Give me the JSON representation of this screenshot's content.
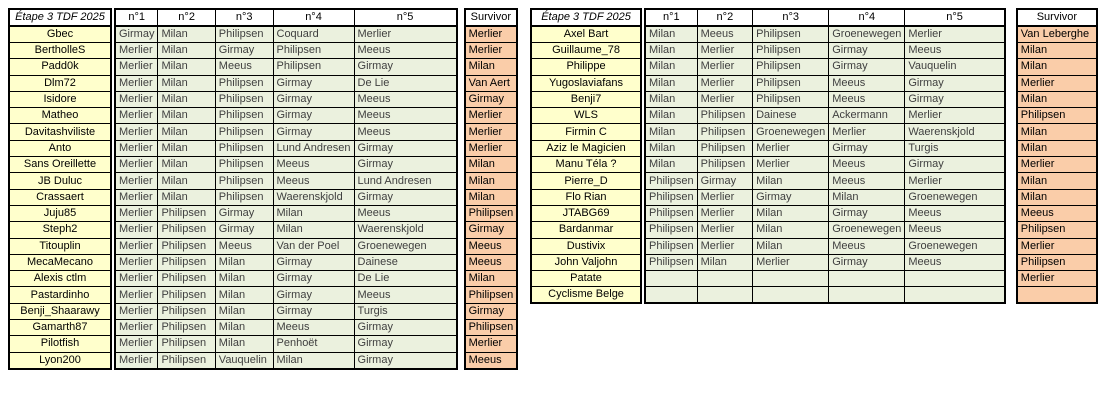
{
  "colors": {
    "name_bg": "#FFFFCC",
    "pick_bg": "#EBF1DE",
    "survivor_bg": "#FACDA9",
    "header_bg": "#FFFFFF",
    "grid": "#000000",
    "pick_text": "#3F3F3F"
  },
  "tables": [
    {
      "title": "Étape 3 TDF 2025",
      "pick_headers": [
        "n°1",
        "n°2",
        "n°3",
        "n°4",
        "n°5"
      ],
      "survivor_label": "Survivor",
      "rows": [
        {
          "name": "Gbec",
          "picks": [
            "Girmay",
            "Milan",
            "Philipsen",
            "Coquard",
            "Merlier"
          ],
          "survivor": "Merlier"
        },
        {
          "name": "BertholleS",
          "picks": [
            "Merlier",
            "Milan",
            "Girmay",
            "Philipsen",
            "Meeus"
          ],
          "survivor": "Merlier"
        },
        {
          "name": "Padd0k",
          "picks": [
            "Merlier",
            "Milan",
            "Meeus",
            "Philipsen",
            "Girmay"
          ],
          "survivor": "Milan"
        },
        {
          "name": "Dlm72",
          "picks": [
            "Merlier",
            "Milan",
            "Philipsen",
            "Girmay",
            "De Lie"
          ],
          "survivor": "Van Aert"
        },
        {
          "name": "Isidore",
          "picks": [
            "Merlier",
            "Milan",
            "Philipsen",
            "Girmay",
            "Meeus"
          ],
          "survivor": "Girmay"
        },
        {
          "name": "Matheo",
          "picks": [
            "Merlier",
            "Milan",
            "Philipsen",
            "Girmay",
            "Meeus"
          ],
          "survivor": "Merlier"
        },
        {
          "name": "Davitashviliste",
          "picks": [
            "Merlier",
            "Milan",
            "Philipsen",
            "Girmay",
            "Meeus"
          ],
          "survivor": "Merlier"
        },
        {
          "name": "Anto",
          "picks": [
            "Merlier",
            "Milan",
            "Philipsen",
            "Lund Andresen",
            "Girmay"
          ],
          "survivor": "Merlier"
        },
        {
          "name": "Sans Oreillette",
          "picks": [
            "Merlier",
            "Milan",
            "Philipsen",
            "Meeus",
            "Girmay"
          ],
          "survivor": "Milan"
        },
        {
          "name": "JB Duluc",
          "picks": [
            "Merlier",
            "Milan",
            "Philipsen",
            "Meeus",
            "Lund Andresen"
          ],
          "survivor": "Milan"
        },
        {
          "name": "Crassaert",
          "picks": [
            "Merlier",
            "Milan",
            "Philipsen",
            "Waerenskjold",
            "Girmay"
          ],
          "survivor": "Milan"
        },
        {
          "name": "Juju85",
          "picks": [
            "Merlier",
            "Philipsen",
            "Girmay",
            "Milan",
            "Meeus"
          ],
          "survivor": "Philipsen"
        },
        {
          "name": "Steph2",
          "picks": [
            "Merlier",
            "Philipsen",
            "Girmay",
            "Milan",
            "Waerenskjold"
          ],
          "survivor": "Girmay"
        },
        {
          "name": "Titouplin",
          "picks": [
            "Merlier",
            "Philipsen",
            "Meeus",
            "Van der Poel",
            "Groenewegen"
          ],
          "survivor": "Meeus"
        },
        {
          "name": "MecaMecano",
          "picks": [
            "Merlier",
            "Philipsen",
            "Milan",
            "Girmay",
            "Dainese"
          ],
          "survivor": "Meeus"
        },
        {
          "name": "Alexis ctlm",
          "picks": [
            "Merlier",
            "Philipsen",
            "Milan",
            "Girmay",
            "De Lie"
          ],
          "survivor": "Milan"
        },
        {
          "name": "Pastardinho",
          "picks": [
            "Merlier",
            "Philipsen",
            "Milan",
            "Girmay",
            "Meeus"
          ],
          "survivor": "Philipsen"
        },
        {
          "name": "Benji_Shaarawy",
          "picks": [
            "Merlier",
            "Philipsen",
            "Milan",
            "Girmay",
            "Turgis"
          ],
          "survivor": "Girmay"
        },
        {
          "name": "Gamarth87",
          "picks": [
            "Merlier",
            "Philipsen",
            "Milan",
            "Meeus",
            "Girmay"
          ],
          "survivor": "Philipsen"
        },
        {
          "name": "Pilotfish",
          "picks": [
            "Merlier",
            "Philipsen",
            "Milan",
            "Penhoët",
            "Girmay"
          ],
          "survivor": "Merlier"
        },
        {
          "name": "Lyon200",
          "picks": [
            "Merlier",
            "Philipsen",
            "Vauquelin",
            "Milan",
            "Girmay"
          ],
          "survivor": "Meeus"
        }
      ]
    },
    {
      "title": "Étape 3 TDF 2025",
      "pick_headers": [
        "n°1",
        "n°2",
        "n°3",
        "n°4",
        "n°5"
      ],
      "survivor_label": "Survivor",
      "rows": [
        {
          "name": "Axel Bart",
          "picks": [
            "Milan",
            "Meeus",
            "Philipsen",
            "Groenewegen",
            "Merlier"
          ],
          "survivor": "Van Leberghe"
        },
        {
          "name": "Guillaume_78",
          "picks": [
            "Milan",
            "Merlier",
            "Philipsen",
            "Girmay",
            "Meeus"
          ],
          "survivor": "Milan"
        },
        {
          "name": "Philippe",
          "picks": [
            "Milan",
            "Merlier",
            "Philipsen",
            "Girmay",
            "Vauquelin"
          ],
          "survivor": "Milan"
        },
        {
          "name": "Yugoslaviafans",
          "picks": [
            "Milan",
            "Merlier",
            "Philipsen",
            "Meeus",
            "Girmay"
          ],
          "survivor": "Merlier"
        },
        {
          "name": "Benji7",
          "picks": [
            "Milan",
            "Merlier",
            "Philipsen",
            "Meeus",
            "Girmay"
          ],
          "survivor": "Milan"
        },
        {
          "name": "WLS",
          "picks": [
            "Milan",
            "Philipsen",
            "Dainese",
            "Ackermann",
            "Merlier"
          ],
          "survivor": "Philipsen"
        },
        {
          "name": "Firmin C",
          "picks": [
            "Milan",
            "Philipsen",
            "Groenewegen",
            "Merlier",
            "Waerenskjold"
          ],
          "survivor": "Milan"
        },
        {
          "name": "Aziz le Magicien",
          "picks": [
            "Milan",
            "Philipsen",
            "Merlier",
            "Girmay",
            "Turgis"
          ],
          "survivor": "Milan"
        },
        {
          "name": "Manu Téla ?",
          "picks": [
            "Milan",
            "Philipsen",
            "Merlier",
            "Meeus",
            "Girmay"
          ],
          "survivor": "Merlier"
        },
        {
          "name": "Pierre_D",
          "picks": [
            "Philipsen",
            "Girmay",
            "Milan",
            "Meeus",
            "Merlier"
          ],
          "survivor": "Milan"
        },
        {
          "name": "Flo Rian",
          "picks": [
            "Philipsen",
            "Merlier",
            "Girmay",
            "Milan",
            "Groenewegen"
          ],
          "survivor": "Milan"
        },
        {
          "name": "JTABG69",
          "picks": [
            "Philipsen",
            "Merlier",
            "Milan",
            "Girmay",
            "Meeus"
          ],
          "survivor": "Meeus"
        },
        {
          "name": "Bardanmar",
          "picks": [
            "Philipsen",
            "Merlier",
            "Milan",
            "Groenewegen",
            "Meeus"
          ],
          "survivor": "Philipsen"
        },
        {
          "name": "Dustivix",
          "picks": [
            "Philipsen",
            "Merlier",
            "Milan",
            "Meeus",
            "Groenewegen"
          ],
          "survivor": "Merlier"
        },
        {
          "name": "John Valjohn",
          "picks": [
            "Philipsen",
            "Milan",
            "Merlier",
            "Girmay",
            "Meeus"
          ],
          "survivor": "Philipsen"
        },
        {
          "name": "Patate",
          "picks": [
            "",
            "",
            "",
            "",
            ""
          ],
          "survivor": "Merlier"
        },
        {
          "name": "Cyclisme Belge",
          "picks": [
            "",
            "",
            "",
            "",
            ""
          ],
          "survivor": ""
        }
      ]
    }
  ]
}
